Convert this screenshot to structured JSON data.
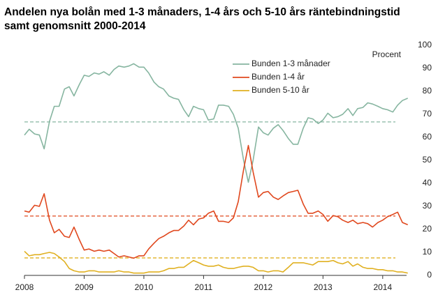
{
  "chart_data": {
    "type": "line",
    "title": [
      "Andelen nya bolån med 1-3 månaders, 1-4 års och 5-10 års räntebindningstid",
      "samt genomsnitt 2000-2014"
    ],
    "y_axis_label": "Procent",
    "xlim": [
      2008,
      2014.4
    ],
    "xticks": [
      2008,
      2009,
      2010,
      2011,
      2012,
      2013,
      2014
    ],
    "ylim": [
      0,
      100
    ],
    "yticks": [
      0,
      10,
      20,
      30,
      40,
      50,
      60,
      70,
      80,
      90,
      100
    ],
    "x": [
      2008,
      2008.08,
      2008.17,
      2008.25,
      2008.33,
      2008.42,
      2008.5,
      2008.58,
      2008.67,
      2008.75,
      2008.83,
      2008.92,
      2009,
      2009.08,
      2009.17,
      2009.25,
      2009.33,
      2009.42,
      2009.5,
      2009.58,
      2009.67,
      2009.75,
      2009.83,
      2009.92,
      2010,
      2010.08,
      2010.17,
      2010.25,
      2010.33,
      2010.42,
      2010.5,
      2010.58,
      2010.67,
      2010.75,
      2010.83,
      2010.92,
      2011,
      2011.08,
      2011.17,
      2011.25,
      2011.33,
      2011.42,
      2011.5,
      2011.58,
      2011.67,
      2011.75,
      2011.83,
      2011.92,
      2012,
      2012.08,
      2012.17,
      2012.25,
      2012.33,
      2012.42,
      2012.5,
      2012.58,
      2012.67,
      2012.75,
      2012.83,
      2012.92,
      2013,
      2013.08,
      2013.17,
      2013.25,
      2013.33,
      2013.42,
      2013.5,
      2013.58,
      2013.67,
      2013.75,
      2013.83,
      2013.92,
      2014,
      2014.08,
      2014.17,
      2014.25,
      2014.33,
      2014.42
    ],
    "series": [
      {
        "name": "Bunden 1-3 månader",
        "color": "#86b5a0",
        "values": [
          61,
          63.5,
          61.5,
          61,
          55,
          67,
          73.5,
          73.5,
          81,
          82,
          78,
          83,
          87,
          86.5,
          88,
          87.5,
          88.5,
          87,
          89.5,
          91,
          90.5,
          91,
          92,
          90.5,
          90.5,
          88,
          84,
          82,
          81,
          78,
          77,
          76.5,
          72,
          69,
          73.5,
          72.5,
          72,
          67.5,
          68,
          74,
          74,
          73.5,
          70,
          64,
          50,
          40.5,
          50,
          64.5,
          62,
          61,
          64,
          65.5,
          63,
          59.5,
          57,
          57,
          64,
          68.5,
          68,
          66,
          67.5,
          70.5,
          68.5,
          69,
          70,
          72.5,
          69.5,
          72.5,
          73,
          75,
          74.5,
          73.5,
          72.5,
          72,
          71,
          74,
          76,
          77
        ]
      },
      {
        "name": "Bunden 1-4 år",
        "color": "#e0481e",
        "values": [
          28,
          27.5,
          30.5,
          30,
          35.5,
          24,
          18.5,
          20,
          17,
          16.5,
          21,
          15.5,
          11,
          11.5,
          10.5,
          11,
          10.5,
          11,
          9.5,
          8,
          8.5,
          8,
          7.5,
          8.5,
          8.5,
          11.5,
          14,
          16,
          17,
          18.5,
          19.5,
          19.5,
          21.5,
          24,
          22,
          24.5,
          25,
          27,
          28,
          23.5,
          23.5,
          23,
          25,
          32,
          46,
          56.5,
          45,
          34,
          36,
          36.5,
          34,
          33,
          34.5,
          36,
          36.5,
          37,
          31,
          27,
          27,
          28,
          26.5,
          23.5,
          26,
          25.5,
          24,
          23,
          24,
          22.5,
          23,
          22.5,
          21,
          23,
          24,
          25.5,
          26.5,
          27.5,
          23,
          22
        ]
      },
      {
        "name": "Bunden 5-10 år",
        "color": "#e0b020",
        "values": [
          10.5,
          8.5,
          9,
          9,
          9.5,
          10,
          9.5,
          8,
          6,
          3,
          2,
          1.5,
          1.5,
          2,
          2,
          1.5,
          1.5,
          1.5,
          1.5,
          2,
          1.5,
          1.5,
          1,
          1,
          1,
          1.5,
          1.5,
          1.5,
          2,
          3,
          3,
          3.5,
          3.5,
          5,
          6.5,
          5.5,
          4.5,
          4,
          4,
          4.5,
          3.5,
          3,
          3,
          3.5,
          4,
          4,
          3.5,
          2,
          2,
          1.5,
          2,
          2,
          1.5,
          3.5,
          5.5,
          5.5,
          5.5,
          5,
          4.5,
          6,
          6,
          6,
          6.5,
          5.5,
          5,
          6,
          4,
          5,
          3.5,
          3,
          3,
          2.5,
          2.5,
          2,
          2,
          1.5,
          1.5,
          1
        ]
      }
    ],
    "average_lines": [
      {
        "value": 66.7,
        "color": "#86b5a0"
      },
      {
        "value": 25.8,
        "color": "#e0481e"
      },
      {
        "value": 7.6,
        "color": "#e0b020"
      }
    ],
    "legend": "top"
  }
}
